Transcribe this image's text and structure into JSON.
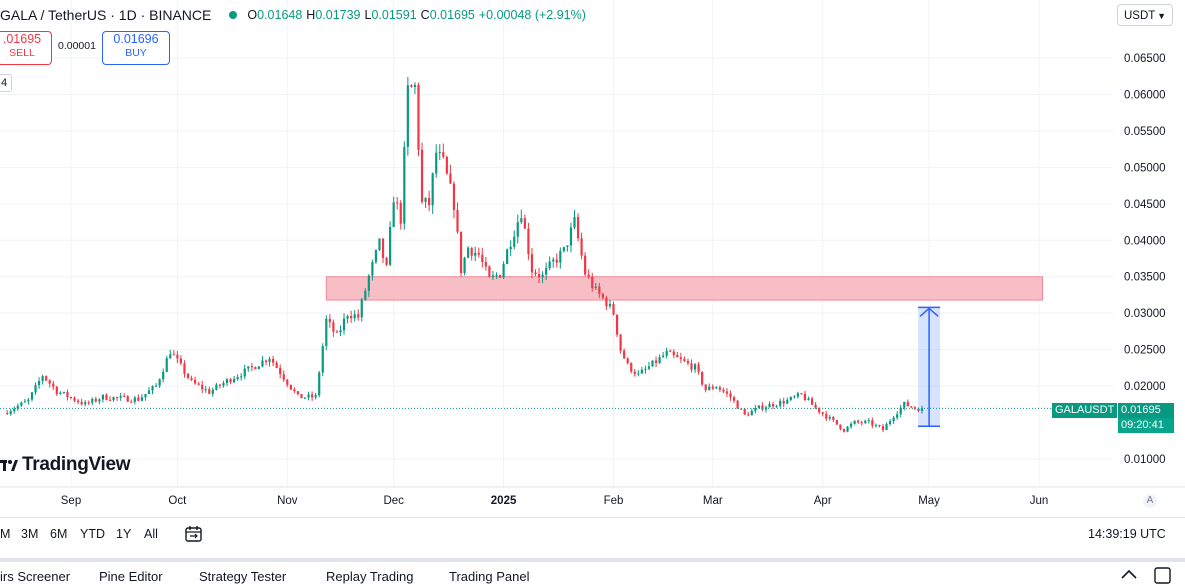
{
  "legend": {
    "symbol": "GALA / TetherUS · 1D · BINANCE",
    "o_label": "O",
    "o": "0.01648",
    "h_label": "H",
    "h": "0.01739",
    "l_label": "L",
    "l": "0.01591",
    "c_label": "C",
    "c": "0.01695",
    "change": "+0.00048 (+2.91%)"
  },
  "trade": {
    "sell_price": ".01695",
    "sell_label": "SELL",
    "spread": "0.00001",
    "buy_price": "0.01696",
    "buy_label": "BUY",
    "small_box": "4"
  },
  "currency": "USDT",
  "logo_text": "TradingView",
  "price_tag": {
    "symbol": "GALAUSDT",
    "price": "0.01695",
    "countdown": "09:20:41"
  },
  "auto_label": "A",
  "ranges": [
    "M",
    "3M",
    "6M",
    "YTD",
    "1Y",
    "All"
  ],
  "clock": "14:39:19 UTC",
  "bottom_tabs": [
    "irs Screener",
    "Pine Editor",
    "Strategy Tester",
    "Replay Trading",
    "Trading Panel"
  ],
  "colors": {
    "up": "#089981",
    "down": "#f23645",
    "zone": "#f7b3bb",
    "arrow": "#2962ff"
  },
  "chart_data": {
    "type": "candlestick",
    "symbol": "GALAUSDT",
    "interval": "1D",
    "yaxis_ticks": [
      0.065,
      0.06,
      0.055,
      0.05,
      0.045,
      0.04,
      0.035,
      0.03,
      0.025,
      0.02,
      0.01
    ],
    "yaxis_tick_labels": [
      "0.06500",
      "0.06000",
      "0.05500",
      "0.05000",
      "0.04500",
      "0.04000",
      "0.03500",
      "0.03000",
      "0.02500",
      "0.02000",
      "0.01000"
    ],
    "ylim": [
      0.0065,
      0.0685
    ],
    "xaxis_ticks": [
      {
        "label": "Sep",
        "date": "2024-09-01"
      },
      {
        "label": "Oct",
        "date": "2024-10-01"
      },
      {
        "label": "Nov",
        "date": "2024-11-01"
      },
      {
        "label": "Dec",
        "date": "2024-12-01"
      },
      {
        "label": "2025",
        "date": "2025-01-01"
      },
      {
        "label": "Feb",
        "date": "2025-02-01"
      },
      {
        "label": "Mar",
        "date": "2025-03-01"
      },
      {
        "label": "Apr",
        "date": "2025-04-01"
      },
      {
        "label": "May",
        "date": "2025-05-01"
      },
      {
        "label": "Jun",
        "date": "2025-06-01"
      }
    ],
    "close_path": [
      [
        "2024-08-13",
        0.0163
      ],
      [
        "2024-08-20",
        0.018
      ],
      [
        "2024-08-24",
        0.0215
      ],
      [
        "2024-08-28",
        0.0193
      ],
      [
        "2024-09-05",
        0.0175
      ],
      [
        "2024-09-10",
        0.0185
      ],
      [
        "2024-09-15",
        0.0183
      ],
      [
        "2024-09-20",
        0.0182
      ],
      [
        "2024-09-25",
        0.02
      ],
      [
        "2024-09-29",
        0.0248
      ],
      [
        "2024-10-05",
        0.0205
      ],
      [
        "2024-10-10",
        0.0192
      ],
      [
        "2024-10-16",
        0.021
      ],
      [
        "2024-10-22",
        0.0225
      ],
      [
        "2024-10-27",
        0.024
      ],
      [
        "2024-10-31",
        0.0212
      ],
      [
        "2024-11-04",
        0.0185
      ],
      [
        "2024-11-09",
        0.0185
      ],
      [
        "2024-11-12",
        0.029
      ],
      [
        "2024-11-15",
        0.0268
      ],
      [
        "2024-11-18",
        0.03
      ],
      [
        "2024-11-21",
        0.0295
      ],
      [
        "2024-11-24",
        0.035
      ],
      [
        "2024-11-27",
        0.0395
      ],
      [
        "2024-11-29",
        0.036
      ],
      [
        "2024-12-01",
        0.046
      ],
      [
        "2024-12-03",
        0.043
      ],
      [
        "2024-12-05",
        0.0605
      ],
      [
        "2024-12-07",
        0.061
      ],
      [
        "2024-12-09",
        0.045
      ],
      [
        "2024-12-11",
        0.045
      ],
      [
        "2024-12-13",
        0.052
      ],
      [
        "2024-12-15",
        0.0505
      ],
      [
        "2024-12-18",
        0.045
      ],
      [
        "2024-12-20",
        0.036
      ],
      [
        "2024-12-22",
        0.039
      ],
      [
        "2024-12-25",
        0.038
      ],
      [
        "2024-12-28",
        0.0345
      ],
      [
        "2024-12-31",
        0.0355
      ],
      [
        "2025-01-03",
        0.04
      ],
      [
        "2025-01-06",
        0.044
      ],
      [
        "2025-01-09",
        0.036
      ],
      [
        "2025-01-12",
        0.035
      ],
      [
        "2025-01-15",
        0.037
      ],
      [
        "2025-01-18",
        0.0385
      ],
      [
        "2025-01-21",
        0.0425
      ],
      [
        "2025-01-24",
        0.0355
      ],
      [
        "2025-01-27",
        0.033
      ],
      [
        "2025-01-30",
        0.0315
      ],
      [
        "2025-02-01",
        0.03
      ],
      [
        "2025-02-03",
        0.025
      ],
      [
        "2025-02-05",
        0.0228
      ],
      [
        "2025-02-08",
        0.0215
      ],
      [
        "2025-02-12",
        0.023
      ],
      [
        "2025-02-16",
        0.0245
      ],
      [
        "2025-02-20",
        0.0235
      ],
      [
        "2025-02-24",
        0.0225
      ],
      [
        "2025-02-27",
        0.0195
      ],
      [
        "2025-03-02",
        0.02
      ],
      [
        "2025-03-06",
        0.0185
      ],
      [
        "2025-03-10",
        0.016
      ],
      [
        "2025-03-14",
        0.017
      ],
      [
        "2025-03-18",
        0.0175
      ],
      [
        "2025-03-22",
        0.018
      ],
      [
        "2025-03-26",
        0.0188
      ],
      [
        "2025-03-30",
        0.017
      ],
      [
        "2025-04-03",
        0.0155
      ],
      [
        "2025-04-07",
        0.014
      ],
      [
        "2025-04-10",
        0.015
      ],
      [
        "2025-04-14",
        0.015
      ],
      [
        "2025-04-18",
        0.014
      ],
      [
        "2025-04-21",
        0.016
      ],
      [
        "2025-04-24",
        0.0175
      ],
      [
        "2025-04-27",
        0.017
      ],
      [
        "2025-04-29",
        0.01695
      ]
    ],
    "annotations": {
      "resistance_zone": {
        "from": "2024-11-12",
        "to": "2025-06-02",
        "low": 0.0318,
        "high": 0.035
      },
      "price_range_arrow": {
        "date": "2025-05-01",
        "from": 0.0145,
        "to": 0.0308
      },
      "last_price_line": 0.01695
    }
  }
}
